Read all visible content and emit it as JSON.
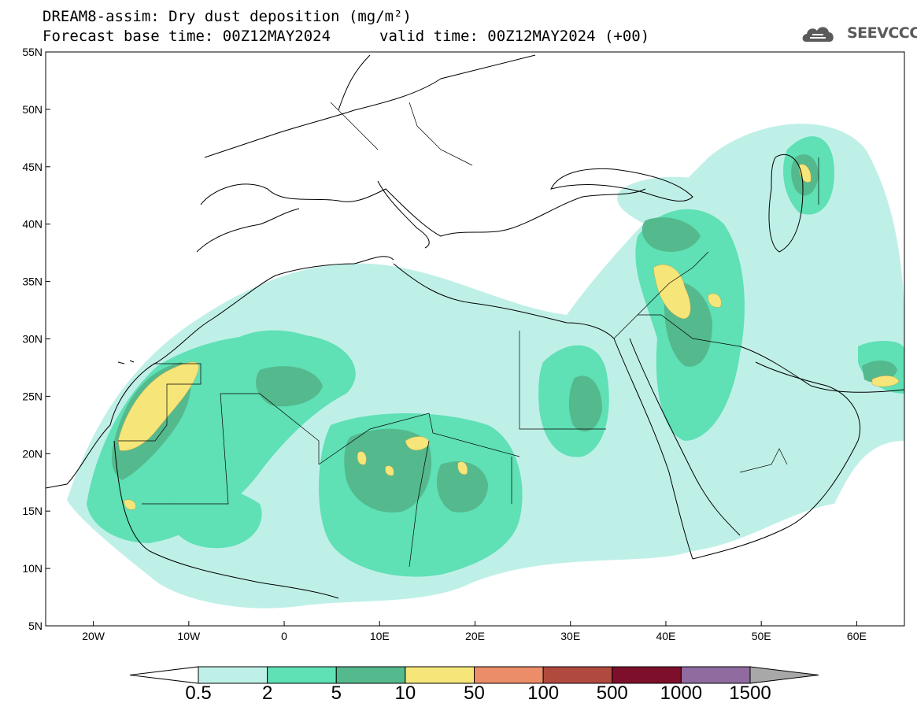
{
  "header": {
    "title_line1": "DREAM8-assim: Dry dust deposition (mg/m²)",
    "title_line2": "Forecast base time: 00Z12MAY2024",
    "valid_time": "valid time: 00Z12MAY2024 (+00)"
  },
  "logo": {
    "text": "SEEVCCC",
    "icon": "cloud-icon",
    "color": "#5a5a5a"
  },
  "map": {
    "projection": "equirectangular",
    "lon_range": [
      -25,
      65
    ],
    "lat_range": [
      5,
      55
    ],
    "lat_ticks": [
      "55N",
      "50N",
      "45N",
      "40N",
      "35N",
      "30N",
      "25N",
      "20N",
      "15N",
      "10N",
      "5N"
    ],
    "lon_ticks": [
      "20W",
      "10W",
      "0",
      "10E",
      "20E",
      "30E",
      "40E",
      "50E",
      "60E"
    ]
  },
  "colorbar": {
    "labels": [
      "0.5",
      "2",
      "5",
      "10",
      "50",
      "100",
      "500",
      "1000",
      "1500"
    ],
    "colors": [
      "#bff0e8",
      "#5fe0b5",
      "#55b98e",
      "#f6e67a",
      "#eb8d68",
      "#b04a3e",
      "#7d0f2b",
      "#8f6ba0",
      "#a8a8a8"
    ],
    "extends": "both"
  }
}
